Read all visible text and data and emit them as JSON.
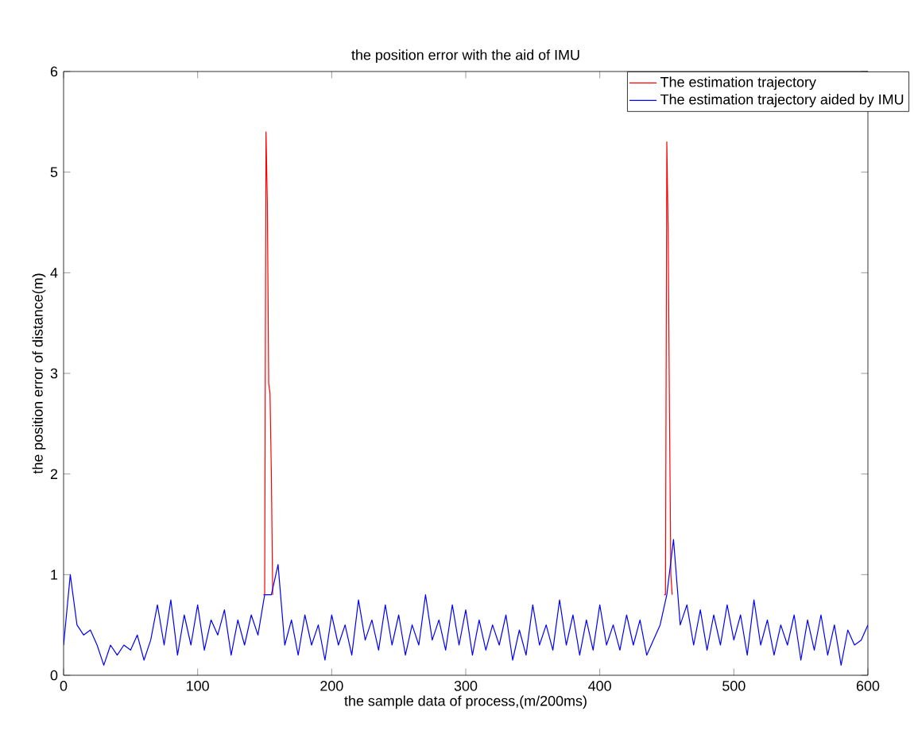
{
  "chart_data": {
    "type": "line",
    "title": "the position error with the aid of IMU",
    "xlabel": "the sample data of process,(m/200ms)",
    "ylabel": "the position error of distance(m)",
    "xlim": [
      0,
      600
    ],
    "ylim": [
      0,
      6
    ],
    "xticks": [
      0,
      100,
      200,
      300,
      400,
      500,
      600
    ],
    "yticks": [
      0,
      1,
      2,
      3,
      4,
      5,
      6
    ],
    "legend": "top right",
    "series": [
      {
        "name": "The estimation trajectory",
        "color": "#ff0000",
        "x": [
          149,
          150,
          151,
          152,
          153,
          154,
          155,
          156,
          300,
          448,
          449,
          450,
          451,
          452,
          453,
          454
        ],
        "values": [
          0.8,
          0.8,
          5.4,
          4.7,
          2.9,
          2.8,
          2.0,
          0.8,
          null,
          0.8,
          0.8,
          5.3,
          4.4,
          2.6,
          1.0,
          0.8
        ]
      },
      {
        "name": "The estimation trajectory aided by IMU",
        "color": "#0000ff",
        "x": [
          0,
          5,
          10,
          15,
          20,
          25,
          30,
          35,
          40,
          45,
          50,
          55,
          60,
          65,
          70,
          75,
          80,
          85,
          90,
          95,
          100,
          105,
          110,
          115,
          120,
          125,
          130,
          135,
          140,
          145,
          150,
          155,
          160,
          165,
          170,
          175,
          180,
          185,
          190,
          195,
          200,
          205,
          210,
          215,
          220,
          225,
          230,
          235,
          240,
          245,
          250,
          255,
          260,
          265,
          270,
          275,
          280,
          285,
          290,
          295,
          300,
          305,
          310,
          315,
          320,
          325,
          330,
          335,
          340,
          345,
          350,
          355,
          360,
          365,
          370,
          375,
          380,
          385,
          390,
          395,
          400,
          405,
          410,
          415,
          420,
          425,
          430,
          435,
          440,
          445,
          450,
          455,
          460,
          465,
          470,
          475,
          480,
          485,
          490,
          495,
          500,
          505,
          510,
          515,
          520,
          525,
          530,
          535,
          540,
          545,
          550,
          555,
          560,
          565,
          570,
          575,
          580,
          585,
          590,
          595,
          600
        ],
        "values": [
          0.3,
          1.0,
          0.5,
          0.4,
          0.45,
          0.3,
          0.1,
          0.3,
          0.2,
          0.3,
          0.25,
          0.4,
          0.15,
          0.35,
          0.7,
          0.3,
          0.75,
          0.2,
          0.6,
          0.3,
          0.7,
          0.25,
          0.55,
          0.4,
          0.65,
          0.2,
          0.55,
          0.3,
          0.6,
          0.4,
          0.8,
          0.8,
          1.1,
          0.3,
          0.55,
          0.2,
          0.6,
          0.3,
          0.5,
          0.15,
          0.6,
          0.3,
          0.5,
          0.2,
          0.75,
          0.35,
          0.55,
          0.25,
          0.7,
          0.3,
          0.6,
          0.2,
          0.5,
          0.3,
          0.8,
          0.35,
          0.55,
          0.25,
          0.7,
          0.3,
          0.65,
          0.2,
          0.55,
          0.25,
          0.5,
          0.3,
          0.6,
          0.15,
          0.45,
          0.2,
          0.7,
          0.3,
          0.5,
          0.25,
          0.75,
          0.3,
          0.6,
          0.2,
          0.55,
          0.25,
          0.7,
          0.3,
          0.5,
          0.25,
          0.6,
          0.3,
          0.55,
          0.2,
          0.35,
          0.5,
          0.8,
          1.35,
          0.5,
          0.7,
          0.3,
          0.65,
          0.25,
          0.6,
          0.3,
          0.7,
          0.35,
          0.6,
          0.2,
          0.75,
          0.3,
          0.55,
          0.2,
          0.5,
          0.3,
          0.6,
          0.15,
          0.55,
          0.25,
          0.6,
          0.2,
          0.5,
          0.1,
          0.45,
          0.3,
          0.35,
          0.5
        ]
      }
    ]
  }
}
